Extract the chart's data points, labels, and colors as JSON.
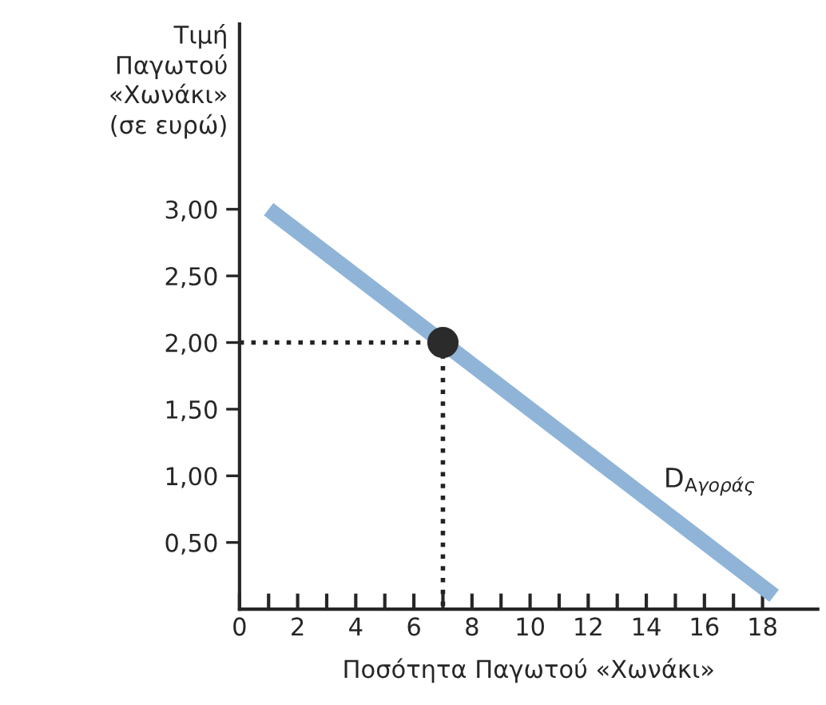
{
  "chart_data": {
    "type": "line",
    "xlabel": "Ποσότητα Παγωτού «Χωνάκι»",
    "ylabel": "Τιμή\nΠαγωτού\n«Χωνάκι»\n(σε ευρώ)",
    "xlim": [
      0,
      19.9
    ],
    "ylim": [
      0,
      4.39
    ],
    "xticks": [
      0,
      {
        "value": 1,
        "label": null
      },
      2,
      {
        "value": 3,
        "label": null
      },
      4,
      {
        "value": 5,
        "label": null
      },
      6,
      {
        "value": 7,
        "label": null
      },
      8,
      {
        "value": 9,
        "label": null
      },
      10,
      {
        "value": 11,
        "label": null
      },
      12,
      {
        "value": 13,
        "label": null
      },
      14,
      {
        "value": 15,
        "label": null
      },
      16,
      {
        "value": 17,
        "label": null
      },
      18
    ],
    "yticks": [
      {
        "value": 0.5,
        "label": "0,50"
      },
      {
        "value": 1,
        "label": "1,00"
      },
      {
        "value": 1.5,
        "label": "1,50"
      },
      {
        "value": 2,
        "label": "2,00"
      },
      {
        "value": 2.5,
        "label": "2,50"
      },
      {
        "value": 3,
        "label": "3,00"
      }
    ],
    "grid": false,
    "legend": false,
    "series": [
      {
        "color": "#8fb4d8",
        "line_style": "solid",
        "marker": "none",
        "x": [
          1,
          18.4
        ],
        "values": [
          3,
          0.1
        ]
      },
      {
        "color": "#222222",
        "line_style": "dotted",
        "marker": "none",
        "x": [
          0,
          7
        ],
        "values": [
          2,
          2
        ]
      },
      {
        "color": "#222222",
        "line_style": "dotted",
        "marker": "none",
        "x": [
          7,
          7
        ],
        "values": [
          2,
          0
        ]
      },
      {
        "type": "scatter",
        "color": "#2b2b2b",
        "marker": "circle",
        "x": [
          7
        ],
        "values": [
          2
        ]
      }
    ],
    "annotations": [
      {
        "text": "D$_{Αγοράς}$",
        "x": 14.6,
        "y": 0.85
      }
    ]
  }
}
